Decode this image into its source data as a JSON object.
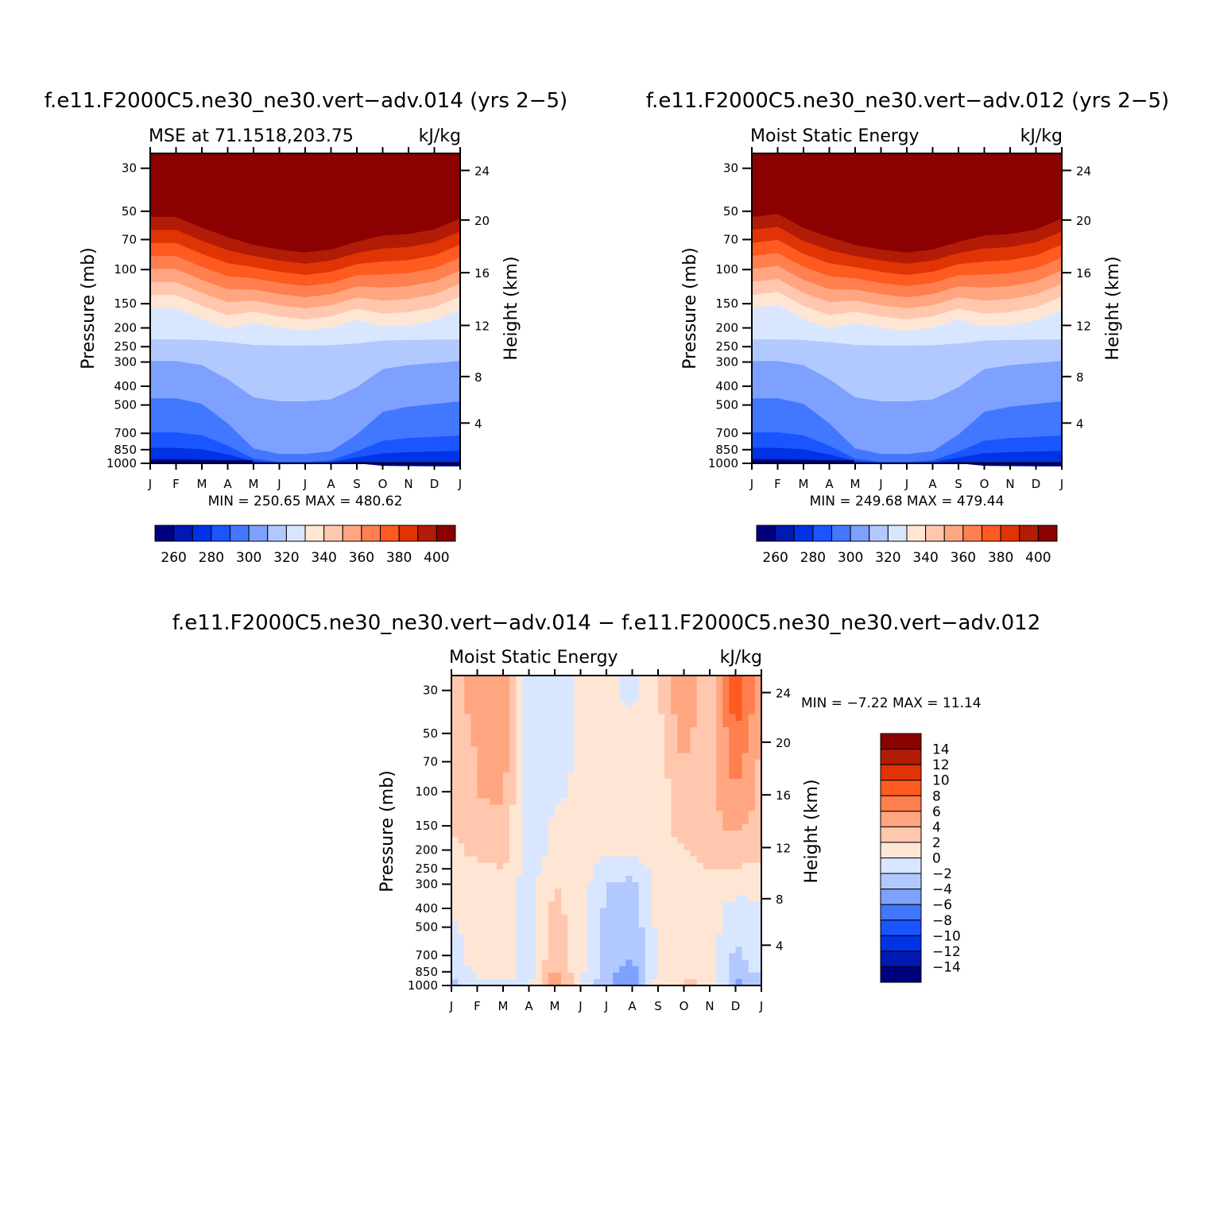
{
  "panel_top_left": {
    "title": "f.e11.F2000C5.ne30_ne30.vert−adv.014 (yrs 2−5)",
    "subtitle": "MSE at 71.1518,203.75",
    "units": "kJ/kg",
    "ylabel": "Pressure (mb)",
    "ylabel_right": "Height (km)",
    "minmax": "MIN = 250.65 MAX = 480.62"
  },
  "panel_top_right": {
    "title": "f.e11.F2000C5.ne30_ne30.vert−adv.012 (yrs 2−5)",
    "subtitle": "Moist Static Energy",
    "units": "kJ/kg",
    "ylabel": "Pressure (mb)",
    "ylabel_right": "Height (km)",
    "minmax": "MIN = 249.68 MAX = 479.44"
  },
  "panel_bottom": {
    "title": "f.e11.F2000C5.ne30_ne30.vert−adv.014 − f.e11.F2000C5.ne30_ne30.vert−adv.012",
    "subtitle": "Moist Static Energy",
    "units": "kJ/kg",
    "ylabel": "Pressure (mb)",
    "ylabel_right": "Height (km)",
    "minmax": "MIN =   −7.22 MAX =   11.14"
  },
  "colors": {
    "top_scale": [
      "#00007f",
      "#0019b2",
      "#0033e6",
      "#1a55ff",
      "#4277ff",
      "#7ea1ff",
      "#b2c9ff",
      "#d8e7ff",
      "#ffe6d4",
      "#ffc7ae",
      "#ffa680",
      "#ff7f4f",
      "#ff5a1f",
      "#e03404",
      "#b21b06",
      "#8b0000"
    ],
    "diff_scale": [
      "#00007f",
      "#0019b2",
      "#0033e6",
      "#1a55ff",
      "#4277ff",
      "#7ea1ff",
      "#b2c9ff",
      "#d8e7ff",
      "#ffe6d4",
      "#ffc7ae",
      "#ffa680",
      "#ff7f4f",
      "#ff5a1f",
      "#e03404",
      "#b21b06",
      "#8b0000"
    ]
  },
  "chart_data": [
    {
      "type": "heatmap",
      "title": "f.e11.F2000C5.ne30_ne30.vert−adv.014 (yrs 2−5)",
      "subtitle": "MSE at 71.1518,203.75",
      "units": "kJ/kg",
      "x": [
        "J",
        "F",
        "M",
        "A",
        "M",
        "J",
        "J",
        "A",
        "S",
        "O",
        "N",
        "D",
        "J"
      ],
      "y_pressure_ticks": [
        30,
        50,
        70,
        100,
        150,
        200,
        250,
        300,
        400,
        500,
        700,
        850,
        1000
      ],
      "y_height_ticks": [
        4,
        8,
        12,
        16,
        20,
        24
      ],
      "ylabel": "Pressure (mb)",
      "ylabel_right": "Height (km)",
      "colorbar_labels": [
        "260",
        "280",
        "300",
        "320",
        "340",
        "360",
        "380",
        "400"
      ],
      "levels": [
        255,
        260,
        265,
        270,
        275,
        280,
        285,
        290,
        295,
        300,
        305,
        310,
        315,
        320,
        325,
        330,
        335,
        340,
        345,
        350,
        355,
        360,
        365,
        370,
        375,
        380,
        385,
        390,
        395,
        400
      ],
      "min": 250.65,
      "max": 480.62
    },
    {
      "type": "heatmap",
      "title": "f.e11.F2000C5.ne30_ne30.vert−adv.012 (yrs 2−5)",
      "subtitle": "Moist Static Energy",
      "units": "kJ/kg",
      "x": [
        "J",
        "F",
        "M",
        "A",
        "M",
        "J",
        "J",
        "A",
        "S",
        "O",
        "N",
        "D",
        "J"
      ],
      "y_pressure_ticks": [
        30,
        50,
        70,
        100,
        150,
        200,
        250,
        300,
        400,
        500,
        700,
        850,
        1000
      ],
      "y_height_ticks": [
        4,
        8,
        12,
        16,
        20,
        24
      ],
      "ylabel": "Pressure (mb)",
      "ylabel_right": "Height (km)",
      "colorbar_labels": [
        "260",
        "280",
        "300",
        "320",
        "340",
        "360",
        "380",
        "400"
      ],
      "min": 249.68,
      "max": 479.44
    },
    {
      "type": "heatmap",
      "title": "f.e11.F2000C5.ne30_ne30.vert−adv.014 − f.e11.F2000C5.ne30_ne30.vert−adv.012",
      "subtitle": "Moist Static Energy",
      "units": "kJ/kg",
      "x": [
        "J",
        "F",
        "M",
        "A",
        "M",
        "J",
        "J",
        "A",
        "S",
        "O",
        "N",
        "D",
        "J"
      ],
      "y_pressure_ticks": [
        30,
        50,
        70,
        100,
        150,
        200,
        250,
        300,
        400,
        500,
        700,
        850,
        1000
      ],
      "y_height_ticks": [
        4,
        8,
        12,
        16,
        20,
        24
      ],
      "ylabel": "Pressure (mb)",
      "ylabel_right": "Height (km)",
      "colorbar_labels": [
        "14",
        "12",
        "10",
        "8",
        "6",
        "4",
        "2",
        "0",
        "−2",
        "−4",
        "−6",
        "−8",
        "−10",
        "−12",
        "−14"
      ],
      "min": -7.22,
      "max": 11.14
    }
  ],
  "diff_field": {
    "x_months": [
      0,
      1,
      2,
      3,
      4,
      5,
      6,
      7,
      8,
      9,
      10,
      11,
      12
    ],
    "p_levels": [
      1000,
      850,
      700,
      500,
      400,
      300,
      250,
      200,
      150,
      100,
      70,
      50,
      30
    ],
    "values": [
      [
        -3.5,
        -0.5,
        -0.5,
        -0.5,
        6.5,
        -0.5,
        -3.5,
        -6.5,
        1,
        2.5,
        2,
        -4.5,
        -3.5
      ],
      [
        -1.5,
        0.5,
        1,
        -1,
        4.5,
        0.5,
        -3,
        -5,
        0.5,
        1,
        1.5,
        -3,
        -1.5
      ],
      [
        -1,
        1,
        1,
        -1,
        3.5,
        1,
        -2.5,
        -4,
        0.5,
        0.8,
        1,
        -2.5,
        -1
      ],
      [
        -0.5,
        1,
        1,
        -1,
        3,
        1,
        -2.5,
        -3.5,
        0.5,
        0.8,
        1,
        -1.5,
        -0.5
      ],
      [
        0.5,
        1,
        1,
        -1,
        2.5,
        1,
        -2.5,
        -3.5,
        0.5,
        0.8,
        1,
        -1,
        -0.5
      ],
      [
        1,
        1.2,
        1,
        -0.8,
        2,
        1,
        -2,
        -2.5,
        0.5,
        1,
        1.5,
        1,
        1
      ],
      [
        1.5,
        1.5,
        2,
        -1,
        1,
        1,
        -1,
        -1.5,
        1,
        1.5,
        2,
        2,
        1.5
      ],
      [
        1.5,
        2.5,
        3,
        -1.5,
        0.5,
        0.5,
        0.5,
        0.5,
        1,
        2,
        2.5,
        3,
        2.5
      ],
      [
        2,
        3.5,
        3.5,
        -1.5,
        0.5,
        0.5,
        0.5,
        0.5,
        1,
        3,
        3.5,
        4.5,
        3
      ],
      [
        2.5,
        4,
        4.5,
        -1.5,
        -0.5,
        0.5,
        0.5,
        0.5,
        1,
        3.5,
        3,
        6,
        3.5
      ],
      [
        2.5,
        4,
        5,
        -1.5,
        -1,
        0.5,
        0.5,
        0.5,
        1,
        4,
        2.5,
        7,
        3.5
      ],
      [
        2.5,
        4.5,
        5,
        -2,
        -1,
        0.5,
        0.5,
        0.5,
        1.5,
        5,
        2,
        8,
        4
      ],
      [
        3,
        5,
        5.5,
        -2,
        -1,
        0.5,
        0.5,
        -0.5,
        1.5,
        6,
        2,
        10,
        4.5
      ]
    ]
  }
}
